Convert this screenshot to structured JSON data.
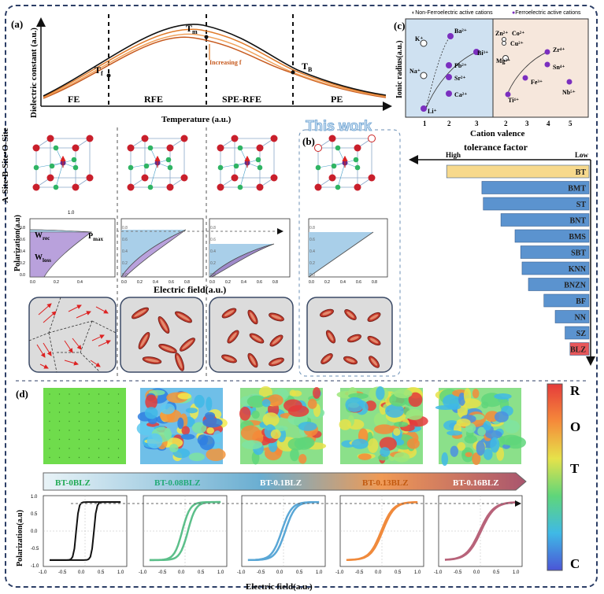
{
  "panel_a": {
    "label": "(a)",
    "ylabel": "Dielectric constant (a.u.)",
    "xlabel": "Temperature (a.u.)",
    "phases": [
      "FE",
      "RFE",
      "SPE-RFE",
      "PE"
    ],
    "tf": "T",
    "tf_sub": "f",
    "tm": "T",
    "tm_sub": "m",
    "tb": "T",
    "tb_sub": "B",
    "annotation": "Increasing f"
  },
  "panel_b": {
    "label": "(b)",
    "this_work": "This work",
    "site_label": "A-Site•B-Site•O-Site",
    "lattice_tick": "1.0",
    "pol_ylabel": "Polarization(a.u)",
    "pol_xlabel": "Electric field(a.u.)",
    "w_rec": "W",
    "w_rec_sub": "rec",
    "w_loss": "W",
    "w_loss_sub": "loss",
    "p_max": "P",
    "p_max_sub": "max",
    "yticks": [
      "0.8",
      "0.6",
      "0.4",
      "0.2",
      "0.0"
    ],
    "xticks_a": [
      "0.0",
      "0.2",
      "0.4"
    ],
    "xticks_b": [
      "0.0",
      "0.2",
      "0.4",
      "0.6",
      "0.8"
    ]
  },
  "panel_c": {
    "label": "(c)",
    "legend_non": "Non-Ferroelectric active cations",
    "legend_fe": "Ferroelectric active cations",
    "ylabel": "Ionic radius(a.u.)",
    "xlabel": "Cation valence",
    "xticks": [
      "1",
      "2",
      "3",
      "2",
      "3",
      "4",
      "5"
    ],
    "ions_left": [
      "K⁺",
      "Ba²⁺",
      "Na⁺",
      "Pb²⁺",
      "Bi³⁺",
      "Sr²⁺",
      "Ca²⁺",
      "Li⁺"
    ],
    "ions_right": [
      "Zn²⁺",
      "Co²⁺",
      "Cu²⁺",
      "Mg²⁺",
      "Zr⁴⁺",
      "Sn⁴⁺",
      "Fe³⁺",
      "Nb⁵⁺",
      "Ti⁴⁺"
    ]
  },
  "tolerance": {
    "title": "tolerance factor",
    "high": "High",
    "low": "Low"
  },
  "chart_data": {
    "type": "bar",
    "orientation": "horizontal",
    "title": "tolerance factor",
    "categories": [
      "BT",
      "BMT",
      "ST",
      "BNT",
      "BMS",
      "SBT",
      "KNN",
      "BNZN",
      "BF",
      "NN",
      "SZ",
      "BLZ"
    ],
    "values": [
      1.062,
      1.012,
      1.01,
      0.985,
      0.965,
      0.957,
      0.955,
      0.946,
      0.924,
      0.908,
      0.894,
      0.887
    ],
    "colors": [
      "#f7d98c",
      "#5b93cf",
      "#5b93cf",
      "#5b93cf",
      "#5b93cf",
      "#5b93cf",
      "#5b93cf",
      "#5b93cf",
      "#5b93cf",
      "#5b93cf",
      "#5b93cf",
      "#e8575a"
    ]
  },
  "panel_d": {
    "label": "(d)",
    "samples": [
      "BT-0BLZ",
      "BT-0.08BLZ",
      "BT-0.1BLZ",
      "BT-0.13BLZ",
      "BT-0.16BLZ"
    ],
    "colorbar_labels": [
      "R",
      "O",
      "T",
      "C"
    ],
    "ylabel": "Polarization(a.u)",
    "xlabel": "Electric field(a.u.)",
    "yticks": [
      "1.0",
      "0.5",
      "0.0",
      "-0.5",
      "-1.0"
    ],
    "xticks": [
      "-1.0",
      "-0.5",
      "0.0",
      "0.5",
      "1.0"
    ],
    "loop_colors": [
      "#111111",
      "#5cbf8a",
      "#5aa7d6",
      "#f08a3c",
      "#b8637a"
    ]
  }
}
